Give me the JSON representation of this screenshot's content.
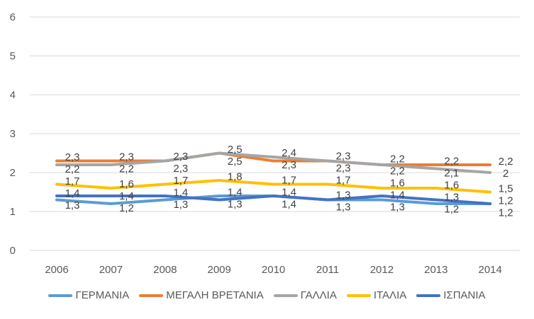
{
  "chart_data": {
    "type": "line",
    "title": "",
    "xlabel": "",
    "ylabel": "",
    "ylim": [
      0,
      6
    ],
    "yticks": [
      "0",
      "1",
      "2",
      "3",
      "4",
      "5",
      "6"
    ],
    "categories": [
      "2006",
      "2007",
      "2008",
      "2009",
      "2010",
      "2011",
      "2012",
      "2013",
      "2014"
    ],
    "grid": true,
    "legend_position": "bottom",
    "series": [
      {
        "name": "ΓΕΡΜΑΝΙΑ",
        "color": "#5B9BD5",
        "values": [
          1.3,
          1.2,
          1.3,
          1.4,
          1.4,
          1.3,
          1.3,
          1.2,
          1.2
        ]
      },
      {
        "name": "ΜΕΓΑΛΗ ΒΡΕΤΑΝΙΑ",
        "color": "#ED7D31",
        "values": [
          2.3,
          2.3,
          2.3,
          2.5,
          2.3,
          2.3,
          2.2,
          2.2,
          2.2
        ]
      },
      {
        "name": "ΓΑΛΛΙΑ",
        "color": "#A5A5A5",
        "values": [
          2.2,
          2.2,
          2.3,
          2.5,
          2.4,
          2.3,
          2.2,
          2.1,
          2.0
        ]
      },
      {
        "name": "ΙΤΑΛΙΑ",
        "color": "#FFC000",
        "values": [
          1.7,
          1.6,
          1.7,
          1.8,
          1.7,
          1.7,
          1.6,
          1.6,
          1.5
        ]
      },
      {
        "name": "ΙΣΠΑΝΙΑ",
        "color": "#4472C4",
        "values": [
          1.4,
          1.4,
          1.4,
          1.3,
          1.4,
          1.3,
          1.4,
          1.3,
          1.2
        ]
      }
    ]
  }
}
